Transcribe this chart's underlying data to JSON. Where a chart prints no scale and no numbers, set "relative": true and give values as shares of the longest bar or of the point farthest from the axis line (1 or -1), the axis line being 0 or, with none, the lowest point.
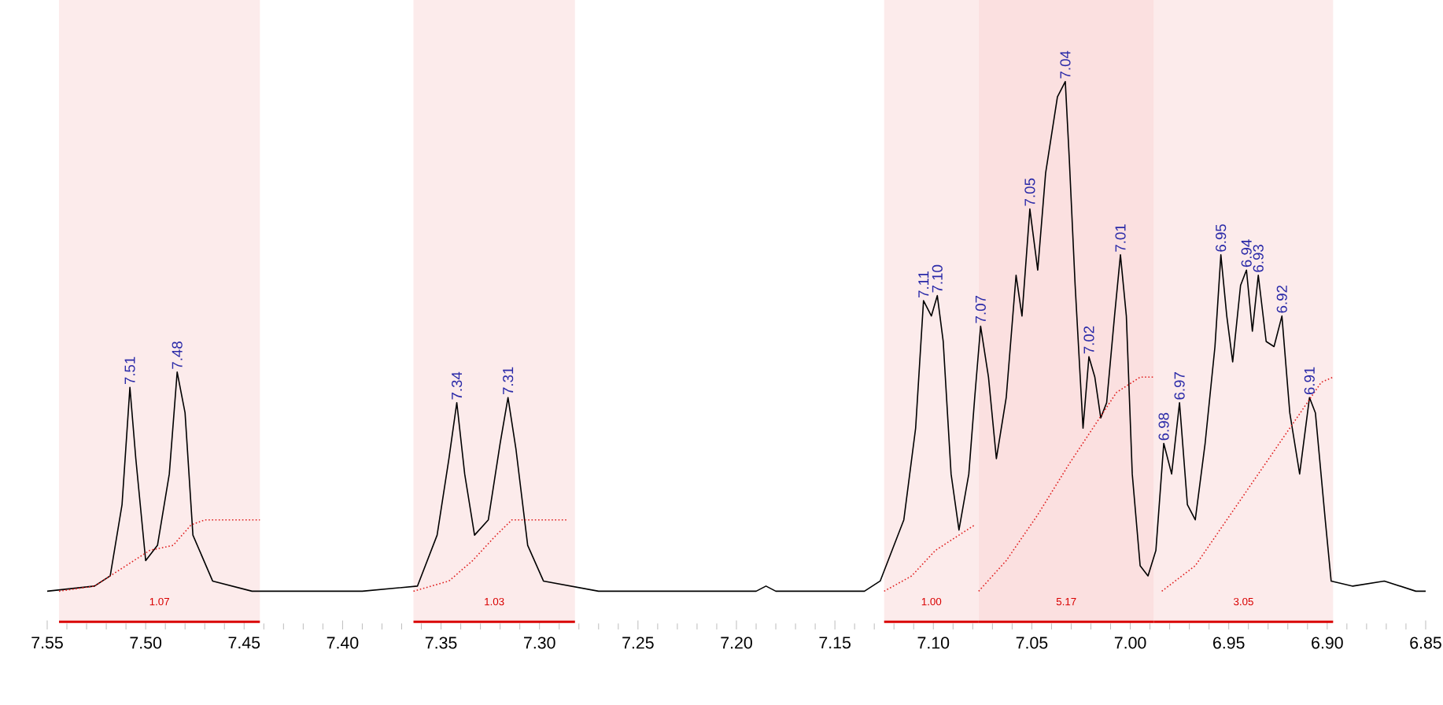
{
  "chart_data": {
    "type": "line",
    "relative": true,
    "grid": false,
    "marker": "none",
    "xlim": [
      7.55,
      6.85
    ],
    "xticks": [
      7.55,
      {
        "value": 7.5,
        "label": "7.50"
      },
      7.45,
      {
        "value": 7.4,
        "label": "7.40"
      },
      7.35,
      {
        "value": 7.3,
        "label": "7.30"
      },
      7.25,
      {
        "value": 7.2,
        "label": "7.20"
      },
      7.15,
      {
        "value": 7.1,
        "label": "7.10"
      },
      7.05,
      {
        "value": 7.0,
        "label": "7.00"
      },
      6.95,
      {
        "value": 6.9,
        "label": "6.90"
      },
      6.85
    ],
    "series": [
      {
        "color": "#000000",
        "line_style": "solid",
        "x": [
          7.55,
          7.526,
          7.518,
          7.512,
          7.508,
          7.505,
          7.5,
          7.494,
          7.488,
          7.484,
          7.48,
          7.476,
          7.466,
          7.446,
          7.39,
          7.362,
          7.352,
          7.346,
          7.342,
          7.338,
          7.333,
          7.326,
          7.32,
          7.316,
          7.312,
          7.306,
          7.298,
          7.27,
          7.19,
          7.185,
          7.18,
          7.135,
          7.127,
          7.115,
          7.109,
          7.105,
          7.101,
          7.098,
          7.095,
          7.091,
          7.087,
          7.082,
          7.079,
          7.076,
          7.072,
          7.068,
          7.063,
          7.058,
          7.055,
          7.051,
          7.047,
          7.043,
          7.037,
          7.033,
          7.031,
          7.028,
          7.024,
          7.021,
          7.018,
          7.015,
          7.012,
          7.008,
          7.005,
          7.002,
          6.999,
          6.995,
          6.991,
          6.987,
          6.983,
          6.979,
          6.975,
          6.971,
          6.967,
          6.962,
          6.957,
          6.954,
          6.951,
          6.948,
          6.944,
          6.941,
          6.938,
          6.935,
          6.931,
          6.927,
          6.923,
          6.919,
          6.914,
          6.909,
          6.906,
          6.901,
          6.898,
          6.887,
          6.871,
          6.855,
          6.85
        ],
        "values": [
          0,
          0.01,
          0.03,
          0.17,
          0.4,
          0.26,
          0.06,
          0.09,
          0.23,
          0.43,
          0.35,
          0.11,
          0.02,
          0,
          0,
          0.01,
          0.11,
          0.26,
          0.37,
          0.23,
          0.11,
          0.14,
          0.29,
          0.38,
          0.28,
          0.09,
          0.02,
          0,
          0,
          0.01,
          0,
          0,
          0.02,
          0.14,
          0.32,
          0.57,
          0.54,
          0.58,
          0.49,
          0.23,
          0.12,
          0.23,
          0.38,
          0.52,
          0.42,
          0.26,
          0.38,
          0.62,
          0.54,
          0.75,
          0.63,
          0.82,
          0.97,
          1,
          0.85,
          0.6,
          0.32,
          0.46,
          0.42,
          0.34,
          0.37,
          0.54,
          0.66,
          0.54,
          0.23,
          0.05,
          0.03,
          0.08,
          0.29,
          0.23,
          0.37,
          0.17,
          0.14,
          0.29,
          0.48,
          0.66,
          0.54,
          0.45,
          0.6,
          0.63,
          0.51,
          0.62,
          0.49,
          0.48,
          0.54,
          0.35,
          0.23,
          0.38,
          0.35,
          0.14,
          0.02,
          0.01,
          0.02,
          0,
          0
        ]
      },
      {
        "color": "#e02020",
        "line_style": "dotted",
        "x": [
          7.544,
          7.526,
          7.51,
          7.498,
          7.486,
          7.477,
          7.47,
          7.458,
          7.442
        ],
        "values": [
          0,
          0.01,
          0.05,
          0.08,
          0.09,
          0.13,
          0.14,
          0.14,
          0.14
        ]
      },
      {
        "color": "#e02020",
        "line_style": "dotted",
        "x": [
          7.364,
          7.346,
          7.334,
          7.322,
          7.314,
          7.298,
          7.286
        ],
        "values": [
          0,
          0.02,
          0.06,
          0.11,
          0.14,
          0.14,
          0.14
        ]
      },
      {
        "color": "#e02020",
        "line_style": "dotted",
        "x": [
          7.125,
          7.111,
          7.099,
          7.087,
          7.079
        ],
        "values": [
          0,
          0.03,
          0.08,
          0.11,
          0.13
        ]
      },
      {
        "color": "#e02020",
        "line_style": "dotted",
        "x": [
          7.077,
          7.063,
          7.047,
          7.031,
          7.019,
          7.007,
          6.995,
          6.988
        ],
        "values": [
          0,
          0.06,
          0.15,
          0.25,
          0.32,
          0.39,
          0.42,
          0.42
        ]
      },
      {
        "color": "#e02020",
        "line_style": "dotted",
        "x": [
          6.984,
          6.967,
          6.951,
          6.935,
          6.919,
          6.903,
          6.897
        ],
        "values": [
          0,
          0.05,
          0.14,
          0.23,
          0.32,
          0.41,
          0.42
        ]
      }
    ],
    "bands": [
      {
        "axis": "x",
        "from": 7.544,
        "to": 7.442,
        "label": "1.07",
        "color": "#fcebeb"
      },
      {
        "axis": "x",
        "from": 7.364,
        "to": 7.282,
        "label": "1.03",
        "color": "#fcebeb"
      },
      {
        "axis": "x",
        "from": 7.125,
        "to": 7.077,
        "label": "1.00",
        "color": "#fcebeb"
      },
      {
        "axis": "x",
        "from": 7.077,
        "to": 6.988,
        "label": "5.17",
        "color": "#fbe0e0"
      },
      {
        "axis": "x",
        "from": 6.988,
        "to": 6.897,
        "label": "3.05",
        "color": "#fcebeb"
      }
    ],
    "annotations": [
      {
        "text": "7.51",
        "x": 7.508,
        "y": 0.4
      },
      {
        "text": "7.48",
        "x": 7.484,
        "y": 0.43
      },
      {
        "text": "7.34",
        "x": 7.342,
        "y": 0.37
      },
      {
        "text": "7.31",
        "x": 7.316,
        "y": 0.38
      },
      {
        "text": "7.11",
        "x": 7.105,
        "y": 0.57
      },
      {
        "text": "7.10",
        "x": 7.098,
        "y": 0.58
      },
      {
        "text": "7.07",
        "x": 7.076,
        "y": 0.52
      },
      {
        "text": "7.05",
        "x": 7.051,
        "y": 0.75
      },
      {
        "text": "7.04",
        "x": 7.033,
        "y": 1
      },
      {
        "text": "7.02",
        "x": 7.021,
        "y": 0.46
      },
      {
        "text": "7.01",
        "x": 7.005,
        "y": 0.66
      },
      {
        "text": "6.98",
        "x": 6.983,
        "y": 0.29
      },
      {
        "text": "6.97",
        "x": 6.975,
        "y": 0.37
      },
      {
        "text": "6.95",
        "x": 6.954,
        "y": 0.66
      },
      {
        "text": "6.94",
        "x": 6.941,
        "y": 0.63
      },
      {
        "text": "6.93",
        "x": 6.935,
        "y": 0.62
      },
      {
        "text": "6.92",
        "x": 6.923,
        "y": 0.54
      },
      {
        "text": "6.91",
        "x": 6.909,
        "y": 0.38
      }
    ]
  }
}
